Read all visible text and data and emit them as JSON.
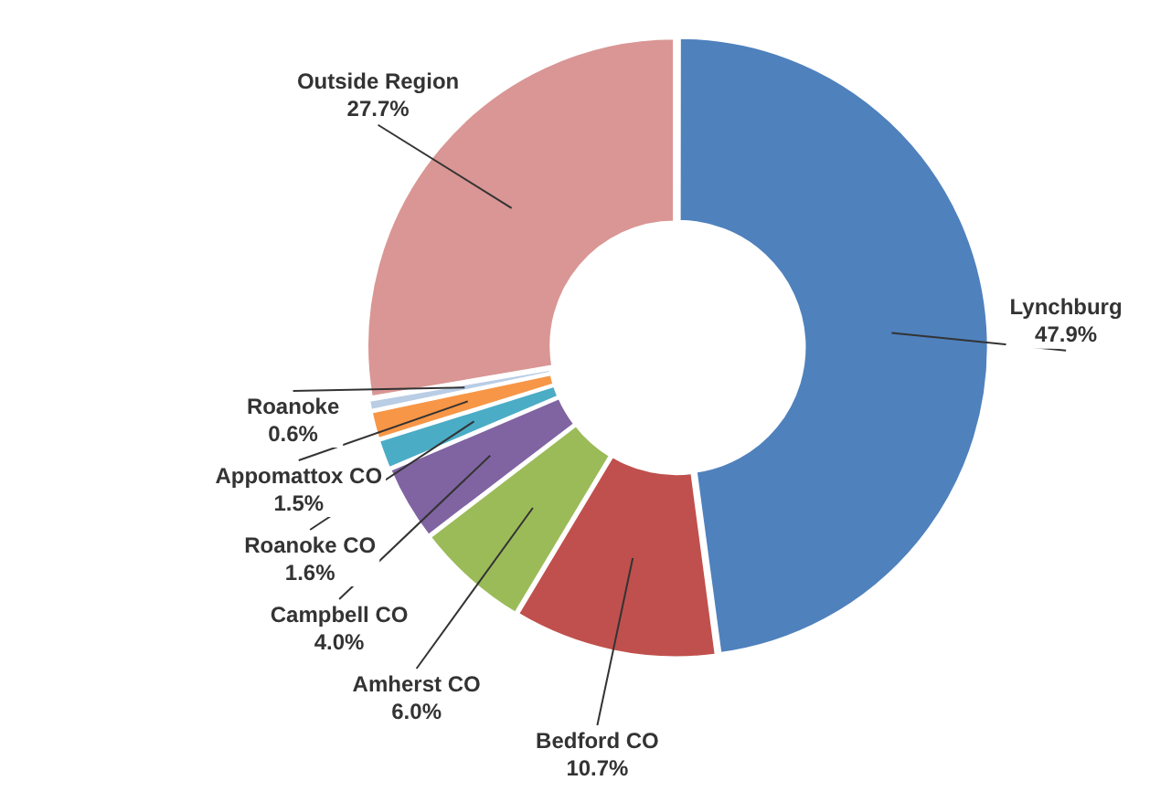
{
  "chart_data": {
    "type": "donut",
    "categories": [
      "Lynchburg",
      "Bedford CO",
      "Amherst CO",
      "Campbell CO",
      "Roanoke CO",
      "Appomattox CO",
      "Roanoke",
      "Outside Region"
    ],
    "values": [
      47.9,
      10.7,
      6.0,
      4.0,
      1.6,
      1.5,
      0.6,
      27.7
    ],
    "value_labels": [
      "47.9%",
      "10.7%",
      "6.0%",
      "4.0%",
      "1.6%",
      "1.5%",
      "0.6%",
      "27.7%"
    ],
    "colors": [
      "#4f81bd",
      "#c0504d",
      "#9bbb59",
      "#8064a2",
      "#4bacc6",
      "#f79646",
      "#b9cde5",
      "#d99694"
    ],
    "legend": false
  }
}
